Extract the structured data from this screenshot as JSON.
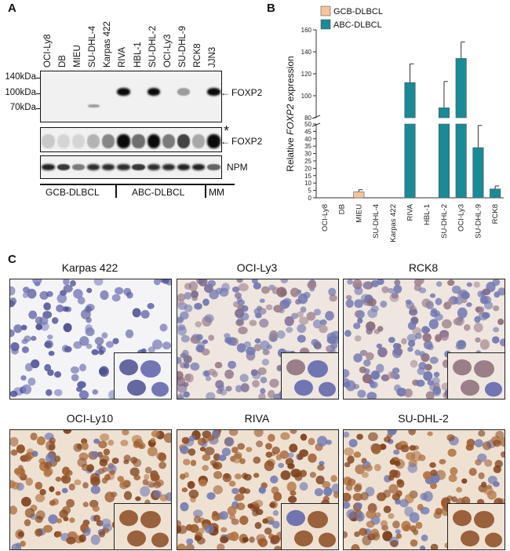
{
  "panels": {
    "a": {
      "letter": "A"
    },
    "b": {
      "letter": "B"
    },
    "c": {
      "letter": "C"
    }
  },
  "western_blot": {
    "lanes": [
      "OCI-Ly8",
      "DB",
      "MIEU",
      "SU-DHL-4",
      "Karpas 422",
      "RIVA",
      "HBL-1",
      "SU-DHL-2",
      "OCI-Ly3",
      "SU-DHL-9",
      "RCK8",
      "JJN3"
    ],
    "markers": [
      "140kDa",
      "100kDa",
      "70kDa"
    ],
    "blot1_label": "FOXP2",
    "blot2_label": "FOXP2",
    "blot2_star": "*",
    "blot3_label": "NPM",
    "groups": [
      "GCB-DLBCL",
      "ABC-DLBCL",
      "MM"
    ],
    "band_intensity_top": [
      0,
      0,
      0,
      0.3,
      0,
      1,
      0,
      1,
      0,
      0.35,
      0,
      1
    ],
    "band_intensity_mid": [
      0.15,
      0.1,
      0.1,
      0.25,
      0.45,
      1,
      0.55,
      1,
      0.5,
      0.75,
      0.3,
      1
    ],
    "band_intensity_npm": [
      0.9,
      0.8,
      0.5,
      0.85,
      0.85,
      0.85,
      0.8,
      0.85,
      0.85,
      0.9,
      0.9,
      0.6
    ]
  },
  "chart_data": {
    "type": "bar",
    "categories": [
      "OCI-Ly8",
      "DB",
      "MIEU",
      "SU-DHL-4",
      "Karpas 422",
      "RIVA",
      "HBL-1",
      "SU-DHL-2",
      "OCI-Ly3",
      "SU-DHL-9",
      "RCK8"
    ],
    "values": [
      0,
      0,
      4,
      0,
      0,
      112,
      0,
      89,
      134,
      34,
      6
    ],
    "errors": [
      0,
      0,
      1.5,
      0,
      0,
      17,
      0,
      24,
      15,
      15,
      2
    ],
    "groups": [
      "GCB-DLBCL",
      "GCB-DLBCL",
      "GCB-DLBCL",
      "GCB-DLBCL",
      "GCB-DLBCL",
      "ABC-DLBCL",
      "ABC-DLBCL",
      "ABC-DLBCL",
      "ABC-DLBCL",
      "ABC-DLBCL",
      "ABC-DLBCL"
    ],
    "legend": [
      {
        "name": "GCB-DLBCL",
        "color": "#f5c59a"
      },
      {
        "name": "ABC-DLBCL",
        "color": "#1a8a96"
      }
    ],
    "ylabel_prefix": "Relative ",
    "ylabel_gene": "FOXP2",
    "ylabel_suffix": " expression",
    "lower_axis": {
      "ylim": [
        0,
        50
      ],
      "ticks": [
        0,
        5,
        10,
        15,
        20,
        25,
        30,
        35,
        40,
        45,
        50
      ]
    },
    "upper_axis": {
      "ylim": [
        80,
        160
      ],
      "ticks": [
        80,
        100,
        120,
        140,
        160
      ]
    },
    "axis_break": true
  },
  "ihc": {
    "tiles": [
      {
        "title": "Karpas 422",
        "stain": "low"
      },
      {
        "title": "OCI-Ly3",
        "stain": "medium"
      },
      {
        "title": "RCK8",
        "stain": "medium"
      },
      {
        "title": "OCI-Ly10",
        "stain": "high"
      },
      {
        "title": "RIVA",
        "stain": "high"
      },
      {
        "title": "SU-DHL-2",
        "stain": "high"
      }
    ]
  }
}
